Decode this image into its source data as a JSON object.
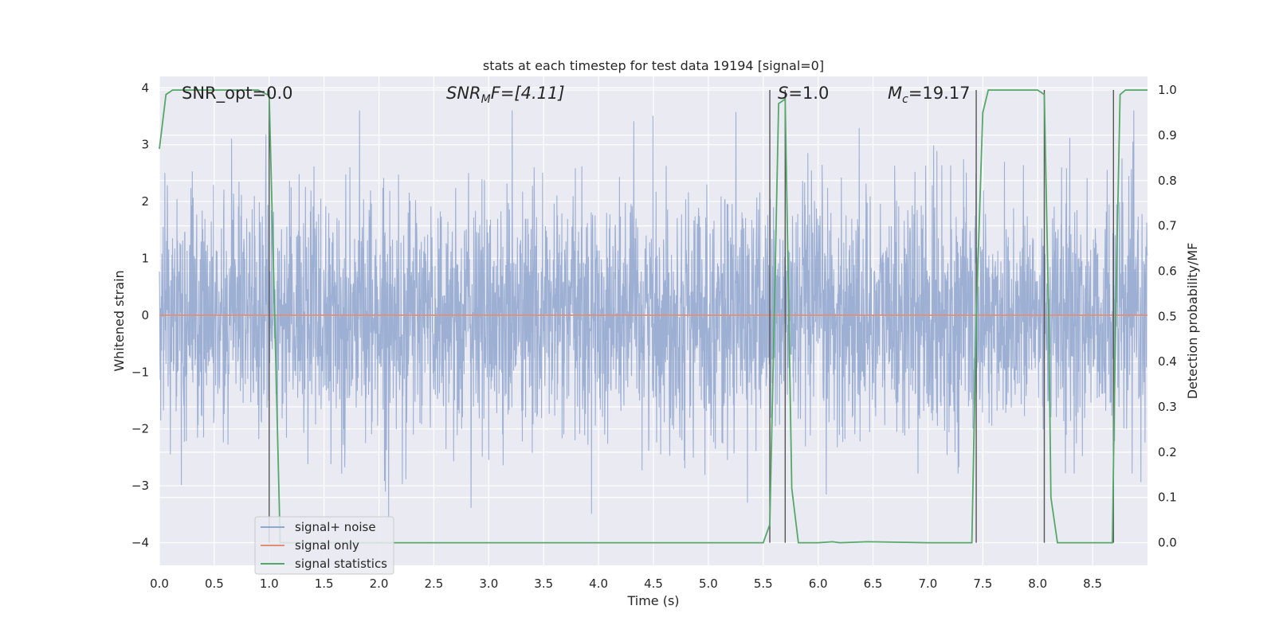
{
  "chart_data": {
    "type": "line",
    "title": "stats at each timestep for test data 19194 [signal=0]",
    "xlabel": "Time (s)",
    "ylabel": "Whitened strain",
    "y2label": "Detection probability/MF",
    "xlim": [
      0,
      9
    ],
    "ylim": [
      -4.4,
      4.2
    ],
    "y2lim": [
      -0.05,
      1.03
    ],
    "xticks": [
      "0.0",
      "0.5",
      "1.0",
      "1.5",
      "2.0",
      "2.5",
      "3.0",
      "3.5",
      "4.0",
      "4.5",
      "5.0",
      "5.5",
      "6.0",
      "6.5",
      "7.0",
      "7.5",
      "8.0",
      "8.5"
    ],
    "yticks": [
      "−4",
      "−3",
      "−2",
      "−1",
      "0",
      "1",
      "2",
      "3",
      "4"
    ],
    "y2ticks": [
      "0.0",
      "0.1",
      "0.2",
      "0.3",
      "0.4",
      "0.5",
      "0.6",
      "0.7",
      "0.8",
      "0.9",
      "1.0"
    ],
    "grid": true,
    "legend_position": "lower-left",
    "legend": [
      "signal+ noise",
      "signal only",
      "signal statistics"
    ],
    "annotations": {
      "snr_opt": "SNR_opt=0.0",
      "snr_mf_main": "SNR",
      "snr_mf_sub": "M",
      "snr_mf_tail": "F=[4.11]",
      "s_main": "S",
      "s_tail": "=1.0",
      "mc_main": "M",
      "mc_sub": "c",
      "mc_tail": "=19.17"
    },
    "series": [
      {
        "name": "signal+ noise",
        "color": "#8fa6cf",
        "description": "whitened noisy strain, approx. Gaussian noise with amplitude envelope ~ ±2.5, spikes up to ~3.6 / down to ~-4",
        "x_range": [
          0,
          9
        ]
      },
      {
        "name": "signal only",
        "color": "#e08f76",
        "x": [
          0,
          9
        ],
        "y": [
          0,
          0
        ]
      },
      {
        "name": "signal statistics",
        "color": "#55a868",
        "x": [
          0.0,
          0.06,
          0.12,
          0.2,
          0.5,
          0.9,
          0.98,
          1.0,
          1.05,
          1.1,
          1.5,
          2.0,
          3.0,
          4.0,
          5.0,
          5.5,
          5.56,
          5.6,
          5.64,
          5.7,
          5.76,
          5.82,
          6.0,
          6.13,
          6.2,
          6.45,
          7.0,
          7.4,
          7.44,
          7.5,
          7.55,
          8.0,
          8.06,
          8.1,
          8.12,
          8.18,
          8.5,
          8.68,
          8.71,
          8.75,
          8.8,
          9.0
        ],
        "y": [
          0.87,
          0.99,
          1.0,
          1.0,
          1.0,
          1.0,
          0.99,
          0.99,
          0.5,
          0.0,
          0.0,
          0.0,
          0.0,
          0.0,
          0.0,
          0.0,
          0.04,
          0.5,
          0.97,
          0.98,
          0.12,
          0.0,
          0.0,
          0.002,
          0.0,
          0.002,
          0.0,
          0.0,
          0.5,
          0.95,
          1.0,
          1.0,
          0.99,
          0.5,
          0.1,
          0.0,
          0.0,
          0.0,
          0.5,
          0.99,
          1.0,
          1.0
        ]
      }
    ],
    "vlines": [
      {
        "x": 1.0,
        "y2_top": 1.0
      },
      {
        "x": 5.56,
        "y2_top": 1.0
      },
      {
        "x": 5.7,
        "y2_top": 1.0
      },
      {
        "x": 7.44,
        "y2_top": 1.0
      },
      {
        "x": 8.06,
        "y2_top": 1.0
      },
      {
        "x": 8.69,
        "y2_top": 1.0
      }
    ]
  }
}
